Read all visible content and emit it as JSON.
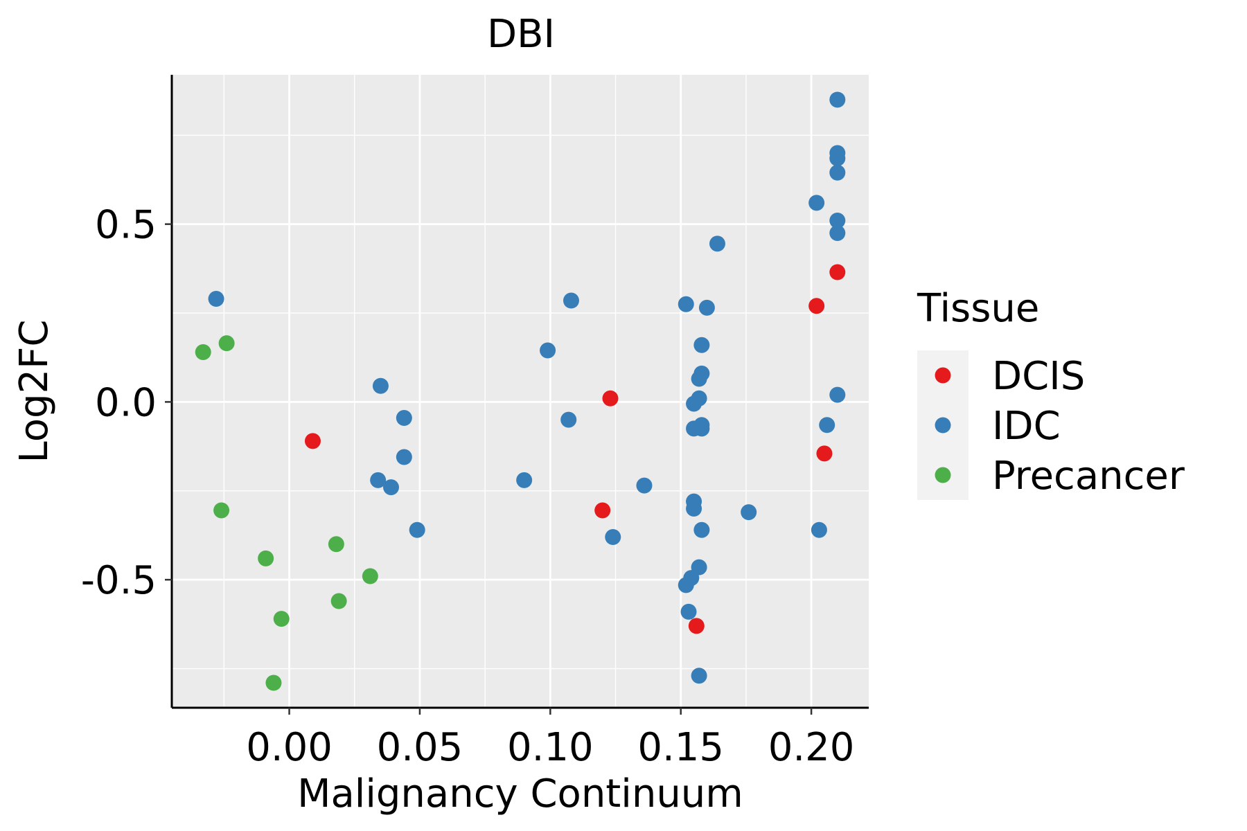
{
  "chart_data": {
    "type": "scatter",
    "title": "DBI",
    "xlabel": "Malignancy Continuum",
    "ylabel": "Log2FC",
    "xlim": [
      -0.045,
      0.222
    ],
    "ylim": [
      -0.86,
      0.92
    ],
    "x_ticks": [
      0.0,
      0.05,
      0.1,
      0.15,
      0.2
    ],
    "x_tick_labels": [
      "0.00",
      "0.05",
      "0.10",
      "0.15",
      "0.20"
    ],
    "y_ticks": [
      0.5,
      0.0,
      -0.5
    ],
    "y_tick_labels": [
      "0.5",
      "0.0",
      "-0.5"
    ],
    "grid": true,
    "legend": {
      "title": "Tissue",
      "position": "right",
      "entries": [
        {
          "label": "DCIS",
          "color": "#E41A1C"
        },
        {
          "label": "IDC",
          "color": "#377EB8"
        },
        {
          "label": "Precancer",
          "color": "#4DAF4A"
        }
      ]
    },
    "series": [
      {
        "name": "DCIS",
        "color": "#E41A1C",
        "points": [
          {
            "x": 0.009,
            "y": -0.11
          },
          {
            "x": 0.123,
            "y": 0.01
          },
          {
            "x": 0.12,
            "y": -0.305
          },
          {
            "x": 0.156,
            "y": -0.63
          },
          {
            "x": 0.202,
            "y": 0.27
          },
          {
            "x": 0.21,
            "y": 0.365
          },
          {
            "x": 0.205,
            "y": -0.145
          }
        ]
      },
      {
        "name": "IDC",
        "color": "#377EB8",
        "points": [
          {
            "x": -0.028,
            "y": 0.29
          },
          {
            "x": 0.035,
            "y": 0.045
          },
          {
            "x": 0.044,
            "y": -0.045
          },
          {
            "x": 0.044,
            "y": -0.155
          },
          {
            "x": 0.034,
            "y": -0.22
          },
          {
            "x": 0.039,
            "y": -0.24
          },
          {
            "x": 0.049,
            "y": -0.36
          },
          {
            "x": 0.09,
            "y": -0.22
          },
          {
            "x": 0.099,
            "y": 0.145
          },
          {
            "x": 0.107,
            "y": -0.05
          },
          {
            "x": 0.108,
            "y": 0.285
          },
          {
            "x": 0.124,
            "y": -0.38
          },
          {
            "x": 0.136,
            "y": -0.235
          },
          {
            "x": 0.152,
            "y": 0.275
          },
          {
            "x": 0.16,
            "y": 0.265
          },
          {
            "x": 0.158,
            "y": 0.16
          },
          {
            "x": 0.158,
            "y": 0.08
          },
          {
            "x": 0.157,
            "y": 0.065
          },
          {
            "x": 0.157,
            "y": 0.01
          },
          {
            "x": 0.155,
            "y": -0.005
          },
          {
            "x": 0.158,
            "y": -0.065
          },
          {
            "x": 0.155,
            "y": -0.075
          },
          {
            "x": 0.158,
            "y": -0.075
          },
          {
            "x": 0.155,
            "y": -0.28
          },
          {
            "x": 0.155,
            "y": -0.3
          },
          {
            "x": 0.158,
            "y": -0.36
          },
          {
            "x": 0.157,
            "y": -0.465
          },
          {
            "x": 0.154,
            "y": -0.495
          },
          {
            "x": 0.152,
            "y": -0.515
          },
          {
            "x": 0.153,
            "y": -0.59
          },
          {
            "x": 0.157,
            "y": -0.77
          },
          {
            "x": 0.164,
            "y": 0.445
          },
          {
            "x": 0.176,
            "y": -0.31
          },
          {
            "x": 0.202,
            "y": 0.56
          },
          {
            "x": 0.203,
            "y": -0.36
          },
          {
            "x": 0.206,
            "y": -0.065
          },
          {
            "x": 0.21,
            "y": 0.85
          },
          {
            "x": 0.21,
            "y": 0.7
          },
          {
            "x": 0.21,
            "y": 0.685
          },
          {
            "x": 0.21,
            "y": 0.645
          },
          {
            "x": 0.21,
            "y": 0.51
          },
          {
            "x": 0.21,
            "y": 0.475
          },
          {
            "x": 0.21,
            "y": 0.02
          }
        ]
      },
      {
        "name": "Precancer",
        "color": "#4DAF4A",
        "points": [
          {
            "x": -0.033,
            "y": 0.14
          },
          {
            "x": -0.024,
            "y": 0.165
          },
          {
            "x": -0.026,
            "y": -0.305
          },
          {
            "x": -0.009,
            "y": -0.44
          },
          {
            "x": -0.003,
            "y": -0.61
          },
          {
            "x": -0.006,
            "y": -0.79
          },
          {
            "x": 0.018,
            "y": -0.4
          },
          {
            "x": 0.019,
            "y": -0.56
          },
          {
            "x": 0.031,
            "y": -0.49
          }
        ]
      }
    ]
  }
}
